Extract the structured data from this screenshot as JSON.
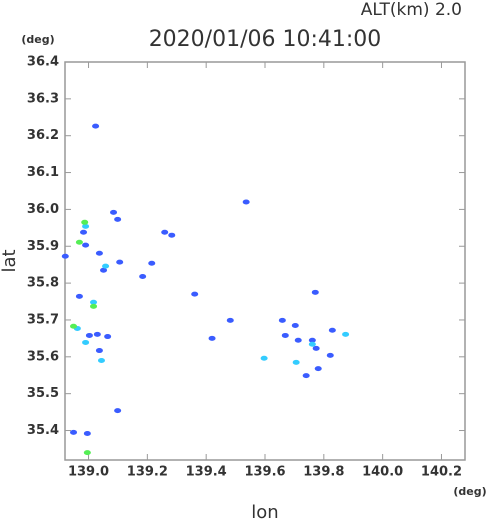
{
  "chart_data": {
    "type": "scatter",
    "title": "2020/01/06 10:41:00",
    "subtitle": "ALT(km) 2.0",
    "x_label": "lon",
    "y_label": "lat",
    "x_unit": "(deg)",
    "y_unit": "(deg)",
    "xlim": [
      138.92,
      140.28
    ],
    "ylim": [
      35.32,
      36.4
    ],
    "xticks": [
      {
        "value": 139,
        "label": "139.0"
      },
      139.2,
      139.4,
      139.6,
      139.8,
      {
        "value": 140,
        "label": "140.0"
      },
      140.2
    ],
    "yticks": [
      35.4,
      35.5,
      35.6,
      35.7,
      35.8,
      35.9,
      {
        "value": 36,
        "label": "36.0"
      },
      36.1,
      36.2,
      36.3,
      36.4
    ],
    "series": [
      {
        "color": "#3a5cff",
        "x": [
          139.024,
          138.983,
          138.99,
          139.085,
          139.099,
          139.037,
          139.051,
          139.106,
          139.215,
          139.184,
          138.921,
          138.969,
          139.003,
          139.03,
          139.065,
          139.037,
          139.099,
          138.949,
          138.996,
          139.42,
          139.482,
          139.536,
          139.659,
          139.669,
          139.713,
          139.761,
          139.774,
          139.74,
          139.781,
          139.829,
          139.822,
          139.771,
          139.703,
          139.283,
          139.259,
          139.361
        ],
        "values": [
          36.226,
          35.938,
          35.903,
          35.992,
          35.973,
          35.881,
          35.835,
          35.857,
          35.854,
          35.818,
          35.873,
          35.764,
          35.658,
          35.661,
          35.655,
          35.617,
          35.454,
          35.395,
          35.392,
          35.65,
          35.699,
          36.02,
          35.699,
          35.658,
          35.645,
          35.645,
          35.623,
          35.549,
          35.568,
          35.672,
          35.604,
          35.775,
          35.685,
          35.93,
          35.938,
          35.77
        ]
      },
      {
        "color": "#33ccff",
        "x": [
          138.99,
          138.962,
          139.017,
          139.044,
          139.597,
          139.706,
          139.761,
          139.874,
          138.99,
          139.058
        ],
        "values": [
          35.954,
          35.677,
          35.748,
          35.59,
          35.596,
          35.585,
          35.634,
          35.661,
          35.639,
          35.846
        ]
      },
      {
        "color": "#55ee55",
        "x": [
          138.987,
          138.969,
          138.949,
          138.996,
          139.017
        ],
        "values": [
          35.965,
          35.911,
          35.683,
          35.34,
          35.737
        ]
      }
    ]
  }
}
